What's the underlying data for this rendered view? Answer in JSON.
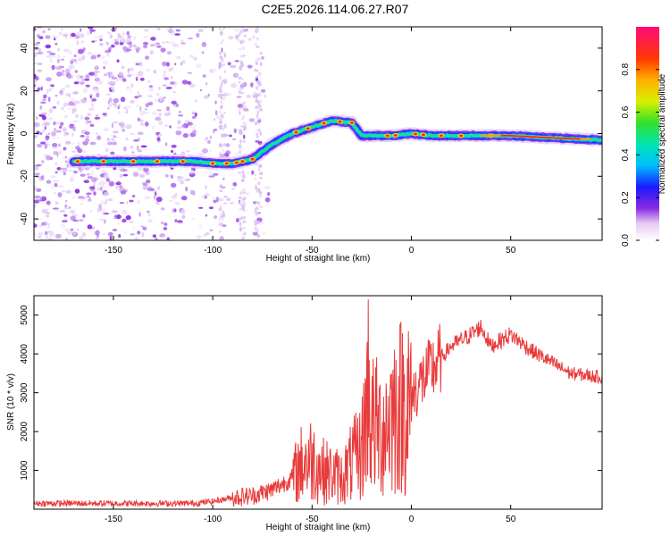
{
  "title": "C2E5.2026.114.06.27.R07",
  "chart_data": [
    {
      "type": "heatmap",
      "title": "C2E5.2026.114.06.27.R07",
      "xlabel": "Height of straight line (km)",
      "ylabel": "Frequency (Hz)",
      "xlim": [
        -190,
        96
      ],
      "ylim": [
        -50,
        50
      ],
      "xticks": [
        -150,
        -100,
        -50,
        0,
        50
      ],
      "yticks": [
        -40,
        -20,
        0,
        20,
        40
      ],
      "colorbar": {
        "label": "Normalized spectral amplitude",
        "range": [
          0.0,
          1.0
        ],
        "ticks": [
          0.0,
          0.2,
          0.4,
          0.6,
          0.8
        ],
        "tick_labels": [
          "0.0",
          "0.2",
          "0.4",
          "0.6",
          "0.8"
        ]
      },
      "ridge": {
        "x": [
          -170,
          -150,
          -130,
          -110,
          -100,
          -90,
          -80,
          -70,
          -60,
          -50,
          -40,
          -30,
          -25,
          -20,
          -10,
          0,
          10,
          30,
          50,
          70,
          96
        ],
        "y": [
          -13,
          -13,
          -13,
          -13,
          -14,
          -14,
          -12,
          -5,
          0,
          3,
          6,
          5,
          -1,
          -1,
          -1,
          0,
          -1,
          -1,
          -1,
          -2,
          -3
        ]
      }
    },
    {
      "type": "line",
      "xlabel": "Height of straight line (km)",
      "ylabel": "SNR (10 * v/v)",
      "xlim": [
        -190,
        96
      ],
      "ylim": [
        0,
        5500
      ],
      "xticks": [
        -150,
        -100,
        -50,
        0,
        50
      ],
      "yticks": [
        1000,
        2000,
        3000,
        4000,
        5000
      ],
      "color": "#e83a3a",
      "envelope": {
        "x": [
          -190,
          -150,
          -110,
          -100,
          -90,
          -80,
          -70,
          -60,
          -55,
          -50,
          -45,
          -40,
          -35,
          -30,
          -25,
          -22,
          -20,
          -15,
          -10,
          -5,
          0,
          5,
          10,
          20,
          30,
          35,
          40,
          50,
          60,
          70,
          80,
          96
        ],
        "y": [
          150,
          150,
          150,
          200,
          300,
          350,
          500,
          800,
          1200,
          1300,
          1000,
          900,
          800,
          1200,
          1500,
          3000,
          2200,
          2000,
          2500,
          2700,
          2900,
          3300,
          3600,
          4200,
          4500,
          4700,
          4200,
          4500,
          4100,
          3800,
          3500,
          3400
        ]
      }
    }
  ]
}
